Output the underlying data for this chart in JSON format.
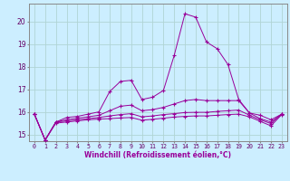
{
  "xlabel": "Windchill (Refroidissement éolien,°C)",
  "background_color": "#cceeff",
  "grid_color": "#b0d4d4",
  "line_color": "#990099",
  "x": [
    0,
    1,
    2,
    3,
    4,
    5,
    6,
    7,
    8,
    9,
    10,
    11,
    12,
    13,
    14,
    15,
    16,
    17,
    18,
    19,
    20,
    21,
    22,
    23
  ],
  "ylim": [
    14.7,
    20.8
  ],
  "yticks": [
    15,
    16,
    17,
    18,
    19,
    20
  ],
  "xlim": [
    -0.5,
    23.5
  ],
  "series": {
    "s1": [
      15.9,
      14.75,
      15.55,
      15.75,
      15.8,
      15.9,
      16.0,
      16.9,
      17.35,
      17.4,
      16.55,
      16.65,
      16.95,
      18.5,
      20.35,
      20.2,
      19.1,
      18.8,
      18.1,
      16.55,
      15.95,
      15.85,
      15.65,
      15.9
    ],
    "s2": [
      15.9,
      14.75,
      15.55,
      15.65,
      15.72,
      15.78,
      15.85,
      16.05,
      16.25,
      16.3,
      16.05,
      16.1,
      16.2,
      16.35,
      16.5,
      16.55,
      16.5,
      16.5,
      16.5,
      16.5,
      15.95,
      15.7,
      15.55,
      15.9
    ],
    "s3": [
      15.9,
      14.75,
      15.55,
      15.6,
      15.65,
      15.7,
      15.75,
      15.82,
      15.88,
      15.92,
      15.78,
      15.82,
      15.88,
      15.92,
      15.97,
      15.98,
      15.98,
      16.02,
      16.05,
      16.08,
      15.85,
      15.65,
      15.48,
      15.9
    ],
    "s4": [
      15.9,
      14.75,
      15.5,
      15.55,
      15.6,
      15.65,
      15.68,
      15.7,
      15.73,
      15.75,
      15.63,
      15.67,
      15.72,
      15.77,
      15.8,
      15.82,
      15.82,
      15.85,
      15.88,
      15.9,
      15.78,
      15.58,
      15.38,
      15.88
    ]
  }
}
